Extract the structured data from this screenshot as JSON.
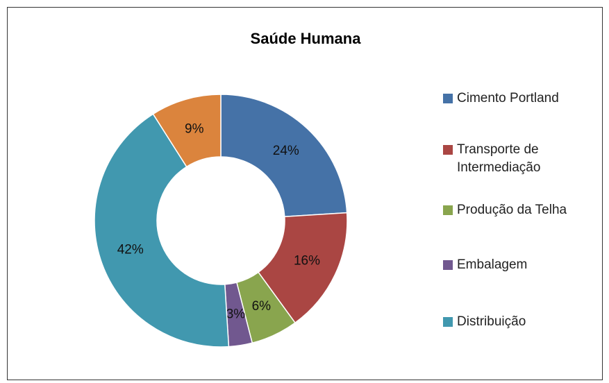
{
  "chart_data": {
    "type": "pie",
    "title": "Saúde Humana",
    "categories": [
      "Cimento Portland",
      "Transporte de Intermediação",
      "Produção da Telha",
      "Embalagem",
      "Distribuição",
      null
    ],
    "values": [
      24,
      16,
      6,
      3,
      42,
      9
    ],
    "value_labels": [
      "24%",
      "16%",
      "6%",
      "3%",
      "42%",
      "9%"
    ],
    "colors": [
      "#4572a7",
      "#aa4643",
      "#89a54e",
      "#71588f",
      "#4198af",
      "#db843d"
    ],
    "donut": true,
    "legend": "right"
  }
}
